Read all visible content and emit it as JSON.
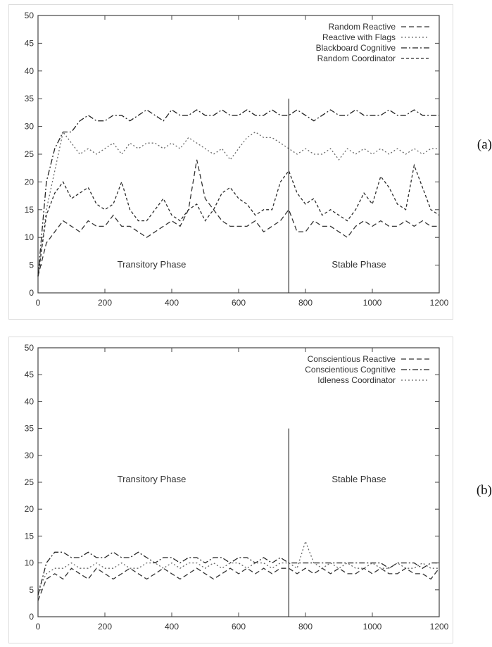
{
  "chart_data": [
    {
      "type": "line",
      "panel_label": "(a)",
      "xlim": [
        0,
        1200
      ],
      "ylim": [
        0,
        50
      ],
      "xticks": [
        0,
        200,
        400,
        600,
        800,
        1000,
        1200
      ],
      "yticks": [
        0,
        5,
        10,
        15,
        20,
        25,
        30,
        35,
        40,
        45,
        50
      ],
      "legend_position": "top-right",
      "divider": {
        "x": 750,
        "y_top": 35
      },
      "annotations": [
        {
          "text": "Transitory Phase",
          "x": 340,
          "y": 4.6
        },
        {
          "text": "Stable Phase",
          "x": 960,
          "y": 4.6
        }
      ],
      "x": [
        0,
        25,
        50,
        75,
        100,
        125,
        150,
        175,
        200,
        225,
        250,
        275,
        300,
        325,
        350,
        375,
        400,
        425,
        450,
        475,
        500,
        525,
        550,
        575,
        600,
        625,
        650,
        675,
        700,
        725,
        750,
        775,
        800,
        825,
        850,
        875,
        900,
        925,
        950,
        975,
        1000,
        1025,
        1050,
        1075,
        1100,
        1125,
        1150,
        1175,
        1200
      ],
      "series": [
        {
          "name": "Random Reactive",
          "style": "dashed",
          "values": [
            3,
            9,
            11,
            13,
            12,
            11,
            13,
            12,
            12,
            14,
            12,
            12,
            11,
            10,
            11,
            12,
            13,
            12,
            15,
            24,
            17,
            15,
            13,
            12,
            12,
            12,
            13,
            11,
            12,
            13,
            15,
            11,
            11,
            13,
            12,
            12,
            11,
            10,
            12,
            13,
            12,
            13,
            12,
            12,
            13,
            12,
            13,
            12,
            12
          ]
        },
        {
          "name": "Reactive with Flags",
          "style": "dotted",
          "values": [
            3,
            15,
            22,
            29,
            27,
            25,
            26,
            25,
            26,
            27,
            25,
            27,
            26,
            27,
            27,
            26,
            27,
            26,
            28,
            27,
            26,
            25,
            26,
            24,
            26,
            28,
            29,
            28,
            28,
            27,
            26,
            25,
            26,
            25,
            25,
            26,
            24,
            26,
            25,
            26,
            25,
            26,
            25,
            26,
            25,
            26,
            25,
            26,
            26
          ]
        },
        {
          "name": "Blackboard Cognitive",
          "style": "dash-dot",
          "values": [
            3,
            20,
            26,
            29,
            29,
            31,
            32,
            31,
            31,
            32,
            32,
            31,
            32,
            33,
            32,
            31,
            33,
            32,
            32,
            33,
            32,
            32,
            33,
            32,
            32,
            33,
            32,
            32,
            33,
            32,
            32,
            33,
            32,
            31,
            32,
            33,
            32,
            32,
            33,
            32,
            32,
            32,
            33,
            32,
            32,
            33,
            32,
            32,
            32
          ]
        },
        {
          "name": "Random Coordinator",
          "style": "short-dash",
          "values": [
            3,
            14,
            18,
            20,
            17,
            18,
            19,
            16,
            15,
            16,
            20,
            15,
            13,
            13,
            15,
            17,
            14,
            13,
            15,
            16,
            13,
            15,
            18,
            19,
            17,
            16,
            14,
            15,
            15,
            20,
            22,
            18,
            16,
            17,
            14,
            15,
            14,
            13,
            15,
            18,
            16,
            21,
            19,
            16,
            15,
            23,
            19,
            15,
            14
          ]
        }
      ]
    },
    {
      "type": "line",
      "panel_label": "(b)",
      "xlim": [
        0,
        1200
      ],
      "ylim": [
        0,
        50
      ],
      "xticks": [
        0,
        200,
        400,
        600,
        800,
        1000,
        1200
      ],
      "yticks": [
        0,
        5,
        10,
        15,
        20,
        25,
        30,
        35,
        40,
        45,
        50
      ],
      "legend_position": "top-right",
      "divider": {
        "x": 750,
        "y_top": 35
      },
      "annotations": [
        {
          "text": "Transitory Phase",
          "x": 340,
          "y": 25
        },
        {
          "text": "Stable Phase",
          "x": 960,
          "y": 25
        }
      ],
      "x": [
        0,
        25,
        50,
        75,
        100,
        125,
        150,
        175,
        200,
        225,
        250,
        275,
        300,
        325,
        350,
        375,
        400,
        425,
        450,
        475,
        500,
        525,
        550,
        575,
        600,
        625,
        650,
        675,
        700,
        725,
        750,
        775,
        800,
        825,
        850,
        875,
        900,
        925,
        950,
        975,
        1000,
        1025,
        1050,
        1075,
        1100,
        1125,
        1150,
        1175,
        1200
      ],
      "series": [
        {
          "name": "Conscientious Reactive",
          "style": "dashed",
          "values": [
            3,
            7,
            8,
            7,
            9,
            8,
            7,
            9,
            8,
            7,
            8,
            9,
            8,
            7,
            8,
            9,
            8,
            7,
            8,
            9,
            8,
            7,
            8,
            9,
            8,
            9,
            8,
            9,
            8,
            9,
            9,
            8,
            9,
            8,
            9,
            8,
            9,
            8,
            8,
            9,
            8,
            9,
            8,
            8,
            9,
            8,
            8,
            7,
            9
          ]
        },
        {
          "name": "Conscientious Cognitive",
          "style": "dash-dot",
          "values": [
            4,
            10,
            12,
            12,
            11,
            11,
            12,
            11,
            11,
            12,
            11,
            11,
            12,
            11,
            10,
            11,
            11,
            10,
            11,
            11,
            10,
            11,
            11,
            10,
            11,
            11,
            10,
            11,
            10,
            11,
            10,
            10,
            10,
            10,
            10,
            10,
            10,
            10,
            10,
            10,
            10,
            10,
            9,
            10,
            10,
            10,
            9,
            10,
            10
          ]
        },
        {
          "name": "Idleness Coordinator",
          "style": "dotted",
          "values": [
            5,
            8,
            9,
            9,
            10,
            9,
            9,
            10,
            9,
            9,
            10,
            9,
            9,
            10,
            10,
            9,
            10,
            9,
            10,
            10,
            9,
            10,
            9,
            10,
            10,
            9,
            10,
            10,
            9,
            10,
            10,
            9,
            14,
            10,
            9,
            10,
            9,
            10,
            9,
            9,
            10,
            9,
            9,
            10,
            9,
            9,
            10,
            9,
            9
          ]
        }
      ]
    }
  ]
}
